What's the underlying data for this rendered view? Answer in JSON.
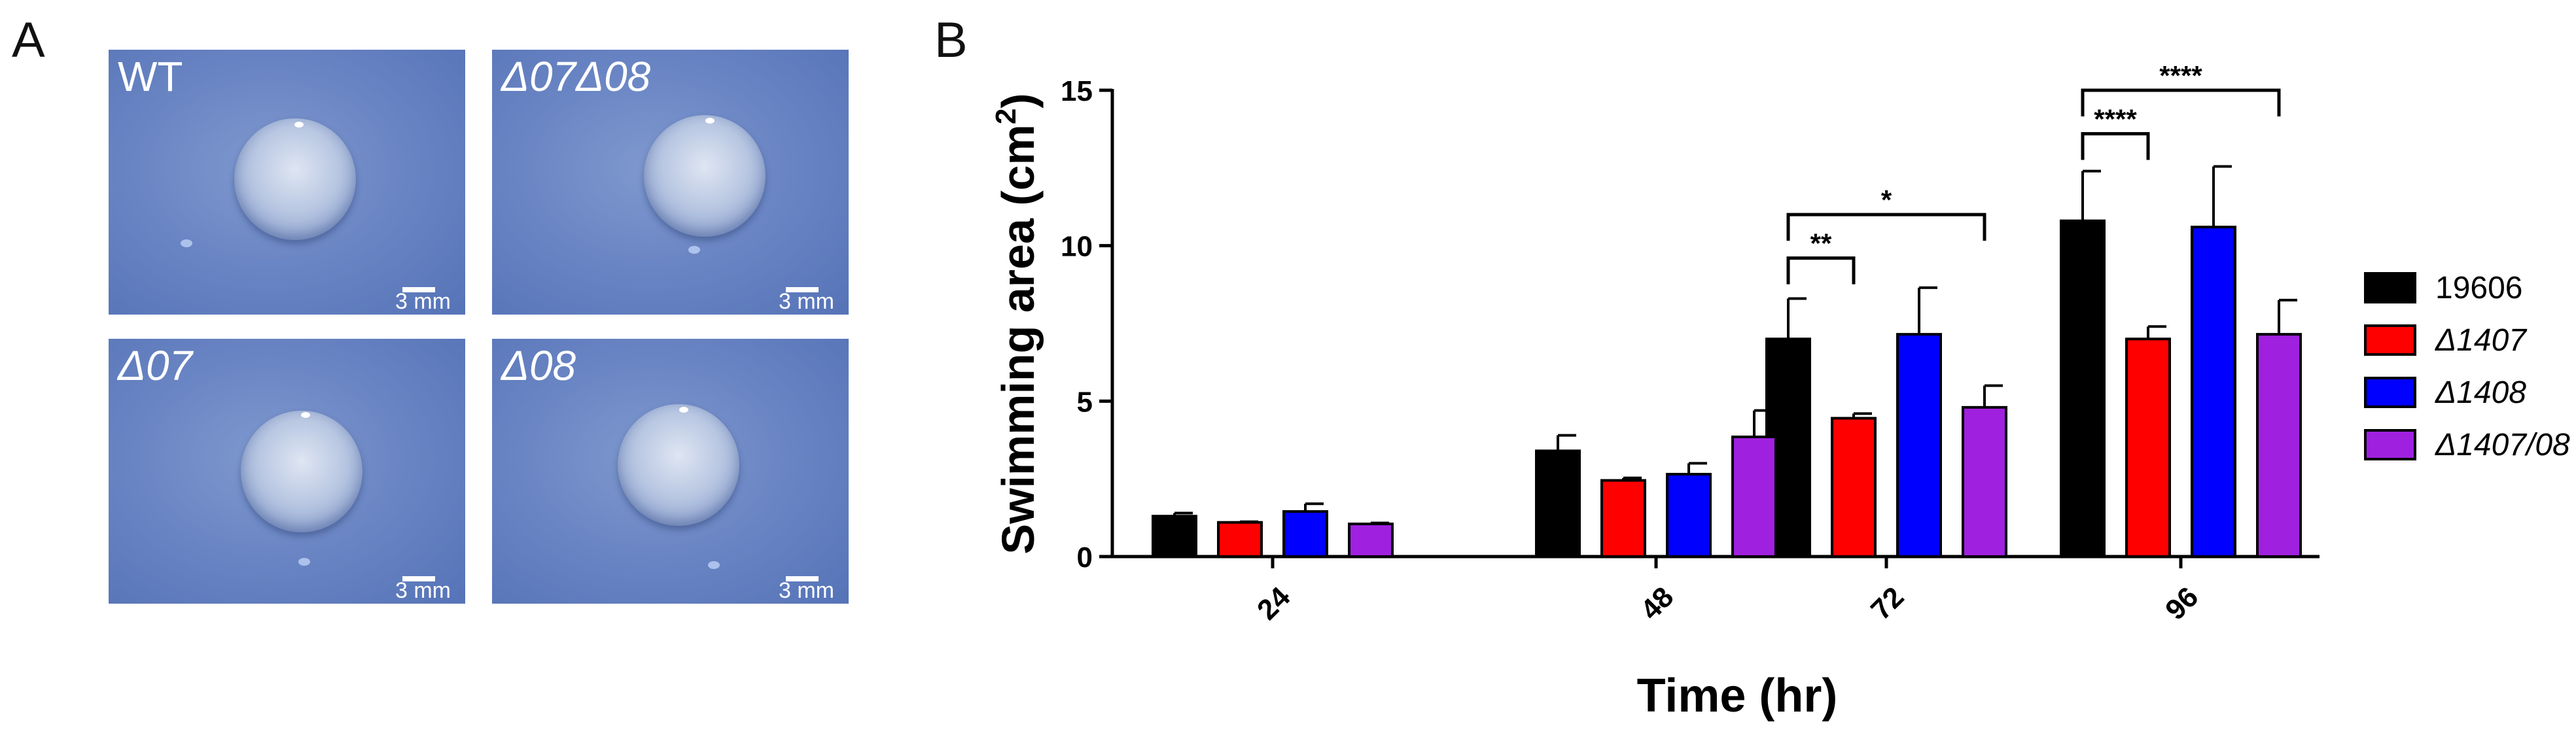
{
  "panel_labels": {
    "a": "A",
    "b": "B"
  },
  "photos": [
    {
      "label": "WT",
      "scale": "3 mm"
    },
    {
      "label": "Δ07Δ08",
      "scale": "3 mm"
    },
    {
      "label": "Δ07",
      "scale": "3 mm"
    },
    {
      "label": "Δ08",
      "scale": "3 mm"
    }
  ],
  "colors": {
    "19606": "#000000",
    "d1407": "#ff0000",
    "d1408": "#0000ff",
    "d1407_08": "#a020e0"
  },
  "chart_data": {
    "type": "bar",
    "title": "",
    "xlabel": "Time (hr)",
    "ylabel": "Swimming area (cm2)",
    "ylabel_main": "Swimming area (cm",
    "ylabel_sup": "2",
    "ylabel_close": ")",
    "ylim": [
      0,
      15
    ],
    "yticks": [
      0,
      5,
      10,
      15
    ],
    "categories": [
      "24",
      "48",
      "72",
      "96"
    ],
    "series": [
      {
        "name": "19606",
        "color": "#000000",
        "values": [
          1.3,
          3.4,
          7.0,
          10.8
        ],
        "errors": [
          0.1,
          0.5,
          1.3,
          1.6
        ]
      },
      {
        "name": "Δ1407",
        "color": "#ff0000",
        "values": [
          1.1,
          2.45,
          4.45,
          7.0
        ],
        "errors": [
          0.02,
          0.08,
          0.15,
          0.4
        ]
      },
      {
        "name": "Δ1408",
        "color": "#0000ff",
        "values": [
          1.45,
          2.65,
          7.15,
          10.6
        ],
        "errors": [
          0.25,
          0.35,
          1.5,
          1.95
        ]
      },
      {
        "name": "Δ1407/08",
        "color": "#a020e0",
        "values": [
          1.05,
          3.85,
          4.8,
          7.15
        ],
        "errors": [
          0.03,
          0.85,
          0.7,
          1.1
        ]
      }
    ],
    "annotations": [
      {
        "label": "**",
        "category": "72",
        "from_series": 0,
        "to_series": 1,
        "level": 9.6
      },
      {
        "label": "*",
        "category": "72",
        "from_series": 0,
        "to_series": 3,
        "level": 11.0
      },
      {
        "label": "****",
        "category": "96",
        "from_series": 0,
        "to_series": 1,
        "level": 13.6
      },
      {
        "label": "****",
        "category": "96",
        "from_series": 0,
        "to_series": 3,
        "level": 15.0
      }
    ],
    "legend_position": "right"
  }
}
